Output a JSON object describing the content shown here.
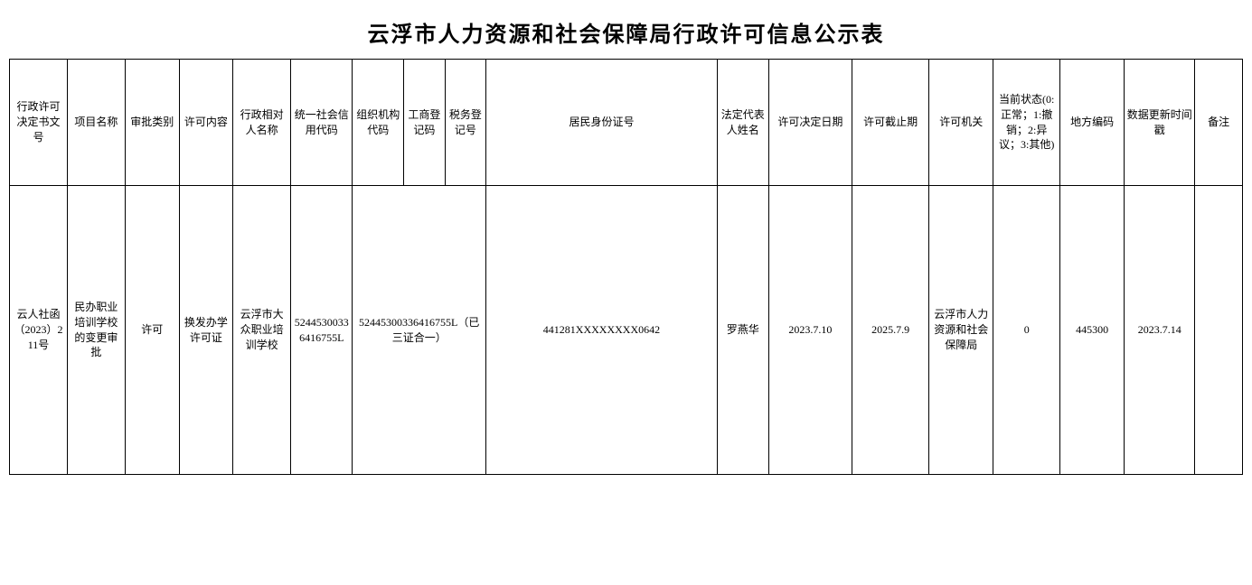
{
  "title": "云浮市人力资源和社会保障局行政许可信息公示表",
  "table": {
    "columns": [
      "行政许可决定书文号",
      "项目名称",
      "审批类别",
      "许可内容",
      "行政相对人名称",
      "统一社会信用代码",
      "组织机构代码",
      "工商登记码",
      "税务登记号",
      "居民身份证号",
      "法定代表人姓名",
      "许可决定日期",
      "许可截止期",
      "许可机关",
      "当前状态(0:正常；1:撤销；2:异议；3:其他)",
      "地方编码",
      "数据更新时间戳",
      "备注"
    ],
    "merged_cols": {
      "org_code_span": 3,
      "org_code_value": "52445300336416755L（已三证合一）"
    },
    "rows": [
      {
        "doc_no": "云人社函（2023）211号",
        "project_name": "民办职业培训学校的变更审批",
        "approval_type": "许可",
        "permit_content": "换发办学许可证",
        "party_name": "云浮市大众职业培训学校",
        "unified_code": "52445300336416755L",
        "id_card": "441281XXXXXXXX0642",
        "legal_rep": "罗燕华",
        "decision_date": "2023.7.10",
        "expiry_date": "2025.7.9",
        "authority": "云浮市人力资源和社会保障局",
        "status": "0",
        "region_code": "445300",
        "update_time": "2023.7.14",
        "remark": ""
      }
    ],
    "styling": {
      "border_color": "#000000",
      "background_color": "#ffffff",
      "header_font_size": 12,
      "cell_font_size": 12,
      "title_font_size": 24,
      "header_row_height": 140,
      "data_row_height": 320
    }
  }
}
